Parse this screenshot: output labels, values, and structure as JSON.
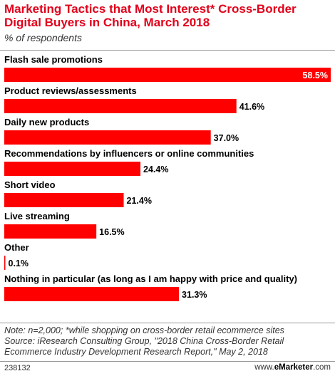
{
  "header": {
    "title": "Marketing Tactics that Most Interest* Cross-Border Digital Buyers in China, March 2018",
    "subtitle": "% of respondents"
  },
  "chart_data": {
    "type": "bar",
    "orientation": "horizontal",
    "title": "Marketing Tactics that Most Interest* Cross-Border Digital Buyers in China, March 2018",
    "subtitle": "% of respondents",
    "unit": "%",
    "xlim": [
      0,
      58.5
    ],
    "grid": false,
    "legend": "none",
    "bar_color": "#ff0000",
    "categories": [
      "Flash sale promotions",
      "Product reviews/assessments",
      "Daily new products",
      "Recommendations by influencers or online communities",
      "Short video",
      "Live streaming",
      "Other",
      "Nothing in particular (as long as I am happy with price and quality)"
    ],
    "values": [
      58.5,
      41.6,
      37.0,
      24.4,
      21.4,
      16.5,
      0.1,
      31.3
    ],
    "value_labels": [
      "58.5%",
      "41.6%",
      "37.0%",
      "24.4%",
      "21.4%",
      "16.5%",
      "0.1%",
      "31.3%"
    ]
  },
  "footer": {
    "notes": [
      "Note: n=2,000; *while shopping on cross-border retail ecommerce sites",
      "Source: iResearch Consulting Group, \"2018 China Cross-Border Retail",
      "Ecommerce Industry Development Research Report,\" May 2, 2018"
    ],
    "chart_id": "238132",
    "brand_prefix": "www.",
    "brand_name": "eMarketer",
    "brand_suffix": ".com"
  }
}
